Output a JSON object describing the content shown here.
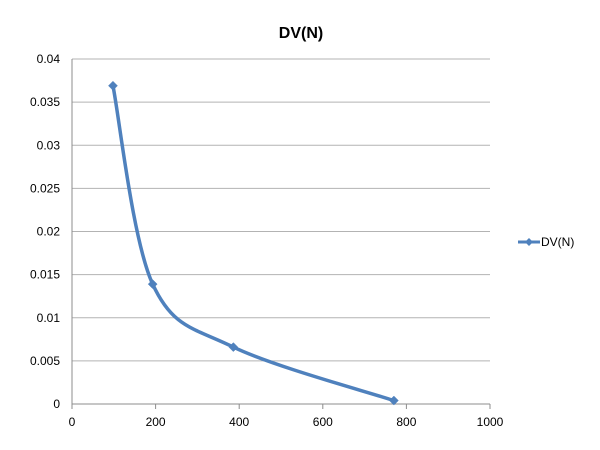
{
  "chart_data": {
    "type": "line",
    "title": "DV(N)",
    "xlabel": "",
    "ylabel": "",
    "xlim": [
      0,
      1000
    ],
    "ylim": [
      0,
      0.04
    ],
    "x_ticks": [
      "0",
      "200",
      "400",
      "600",
      "800",
      "1000"
    ],
    "y_ticks": [
      "0",
      "0.005",
      "0.01",
      "0.015",
      "0.02",
      "0.025",
      "0.03",
      "0.035",
      "0.04"
    ],
    "grid": {
      "horizontal": true,
      "vertical": false
    },
    "legend_position": "right",
    "smooth": true,
    "marker": "diamond",
    "series": [
      {
        "name": "DV(N)",
        "color": "#4F81BD",
        "points": [
          {
            "x": 98,
            "y": 0.0369
          },
          {
            "x": 193,
            "y": 0.0139
          },
          {
            "x": 386,
            "y": 0.0066
          },
          {
            "x": 770,
            "y": 0.0004
          }
        ]
      }
    ]
  }
}
